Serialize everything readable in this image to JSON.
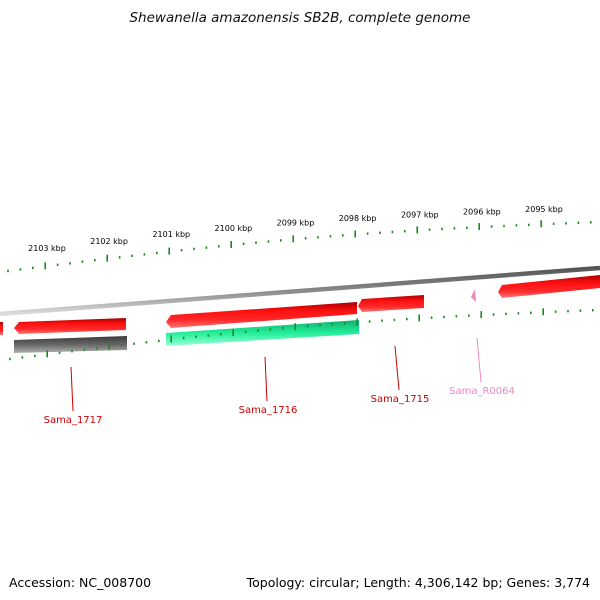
{
  "title": "Shewanella amazonensis SB2B, complete genome",
  "scale_labels": [
    "2103 kbp",
    "2102 kbp",
    "2101 kbp",
    "2100 kbp",
    "2099 kbp",
    "2098 kbp",
    "2097 kbp",
    "2096 kbp",
    "2095 kbp"
  ],
  "genes": [
    {
      "name": "Sama_1717",
      "color": "#cc0000"
    },
    {
      "name": "Sama_1716",
      "color": "#cc0000"
    },
    {
      "name": "Sama_1715",
      "color": "#cc0000"
    },
    {
      "name": "Sama_R0064",
      "color": "#ee88bb"
    }
  ],
  "colors": {
    "forward_cds": "#ff0000",
    "other_feature": "#606060",
    "rna_feature": "#22eeaa",
    "trna_feature": "#ee88bb",
    "backbone": "#888888",
    "tick": "#1a8a1a"
  },
  "footer": {
    "accession": "Accession: NC_008700",
    "summary": "Topology: circular; Length: 4,306,142 bp; Genes: 3,774"
  }
}
